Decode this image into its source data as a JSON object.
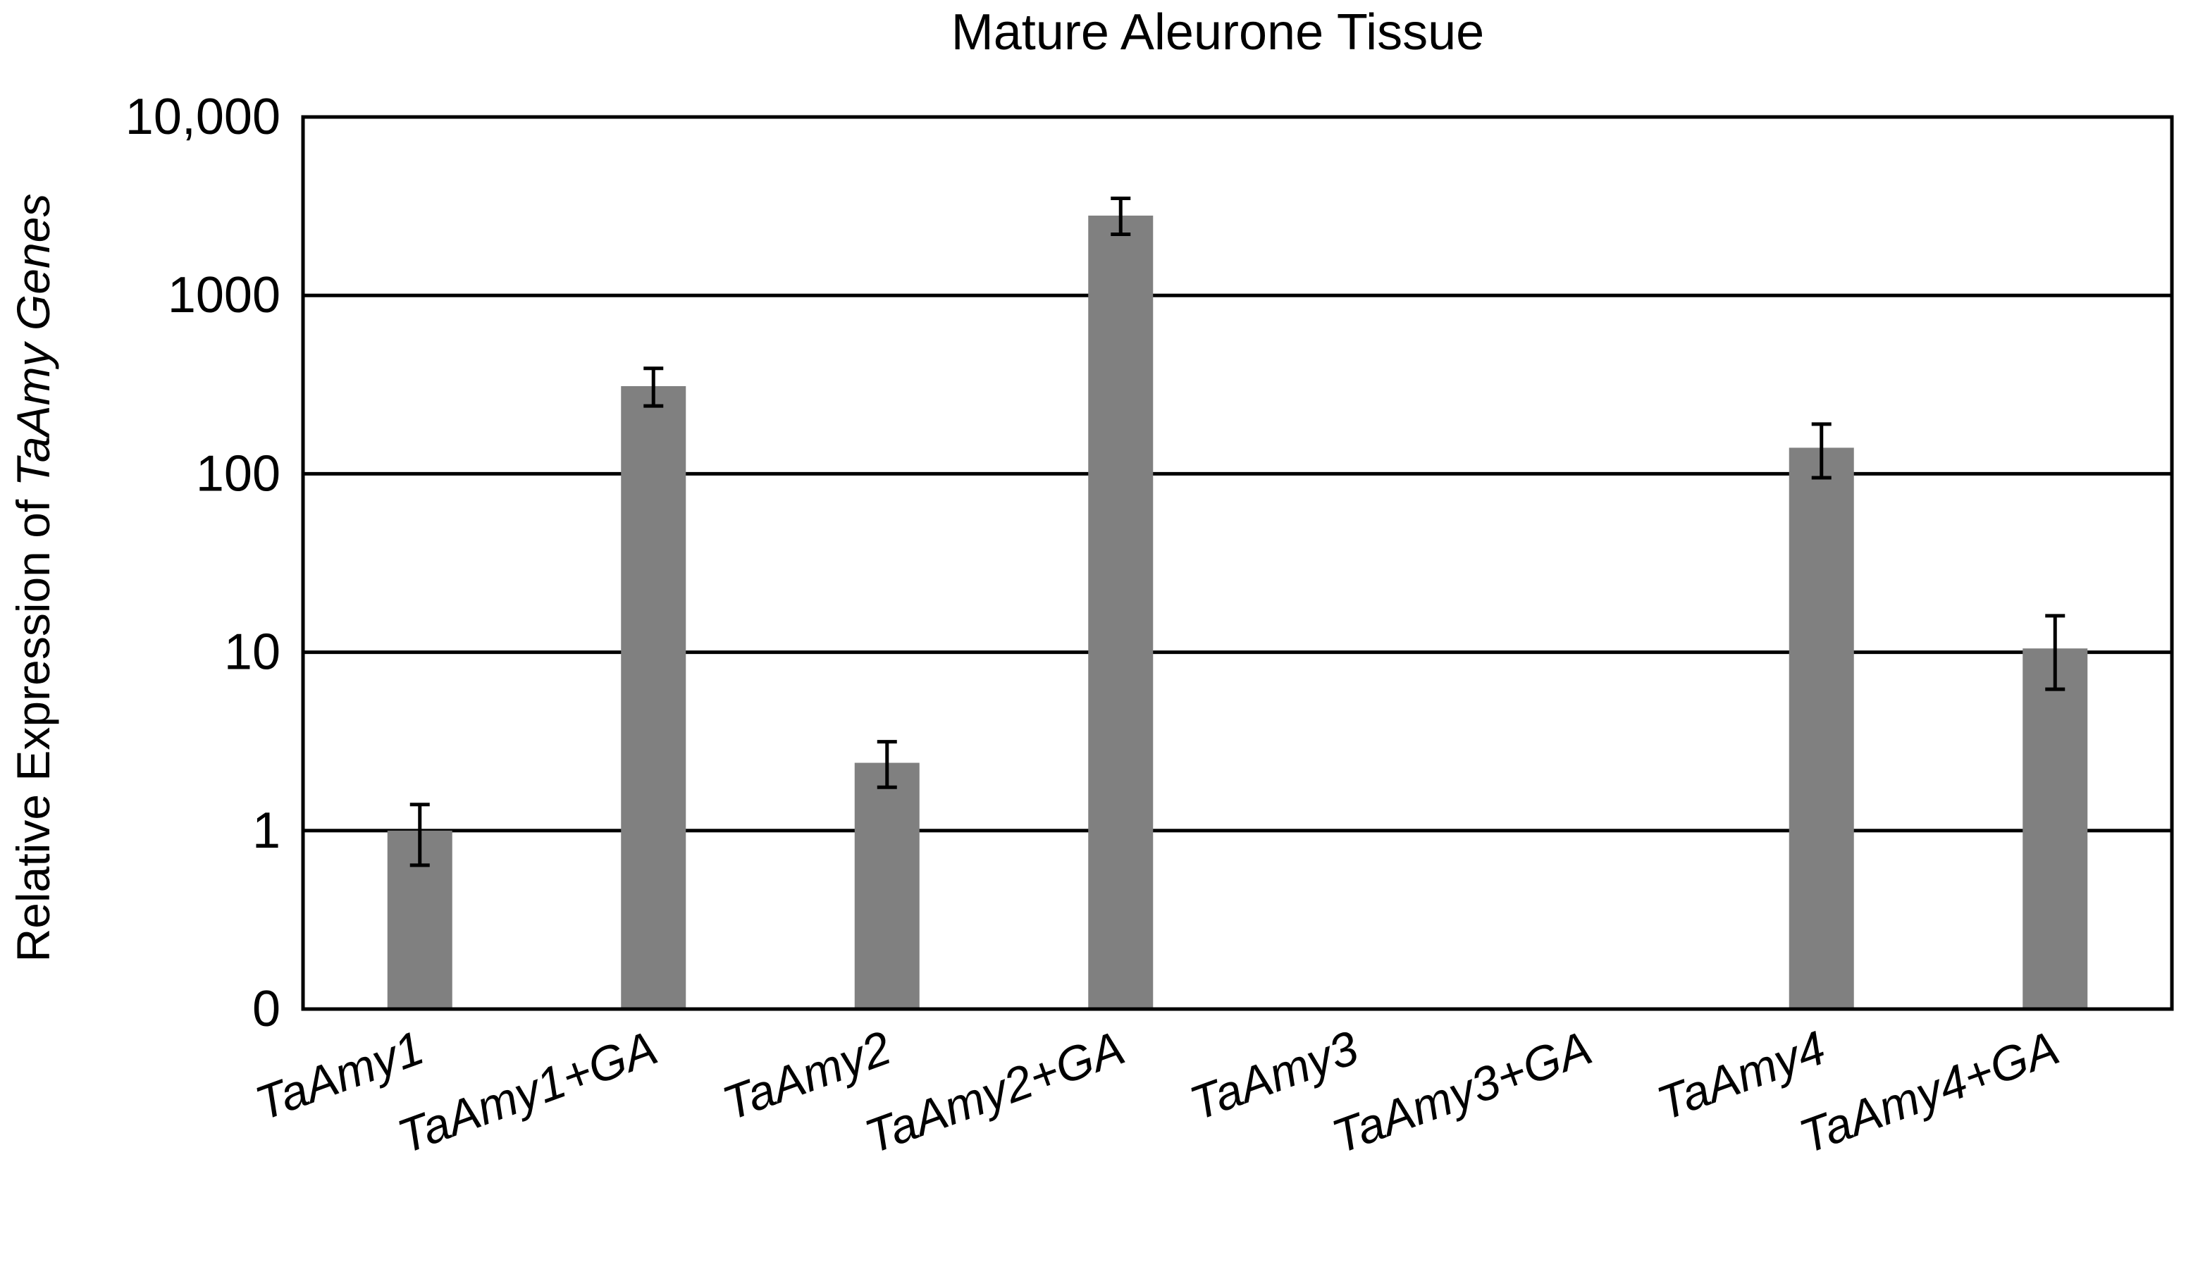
{
  "chart_data": {
    "type": "bar",
    "title": "Mature Aleurone Tissue",
    "ylabel_prefix": "Relative Expression of ",
    "ylabel_italic": "TaAmy Genes",
    "xlabel": "",
    "y_scale": "log",
    "y_tick_labels": [
      "0",
      "1",
      "10",
      "100",
      "1000",
      "10,000"
    ],
    "y_tick_values": [
      0.1,
      1,
      10,
      100,
      1000,
      10000
    ],
    "ylim": [
      0.1,
      10000
    ],
    "grid": true,
    "categories": [
      "TaAmy1",
      "TaAmy1+GA",
      "TaAmy2",
      "TaAmy2+GA",
      "TaAmy3",
      "TaAmy3+GA",
      "TaAmy4",
      "TaAmy4+GA"
    ],
    "values": [
      1.0,
      310,
      2.4,
      2800,
      null,
      null,
      140,
      10.5
    ],
    "error_low": [
      0.64,
      240,
      1.75,
      2200,
      null,
      null,
      95,
      6.2
    ],
    "error_high": [
      1.4,
      390,
      3.15,
      3500,
      null,
      null,
      190,
      16
    ],
    "bar_color": "#808080",
    "grid_color": "#000000"
  }
}
